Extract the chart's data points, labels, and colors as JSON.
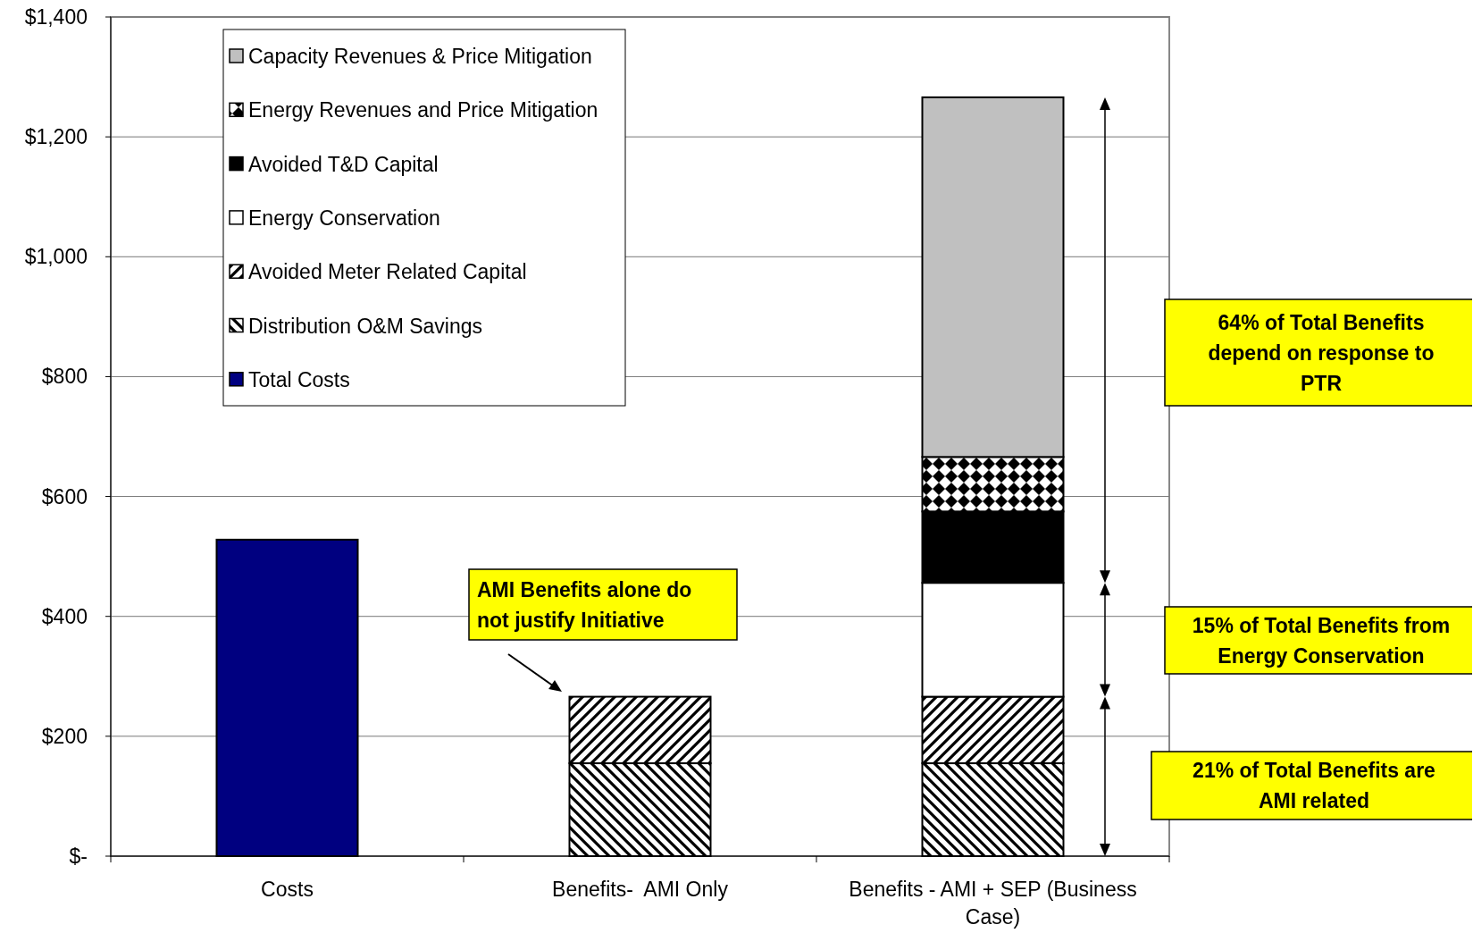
{
  "chart_data": {
    "type": "bar",
    "stacked": true,
    "categories": [
      "Costs",
      "Benefits-  AMI Only",
      "Benefits - AMI + SEP (Business Case)"
    ],
    "series": [
      {
        "name": "Distribution O&M Savings",
        "color": "#000000",
        "values": [
          null,
          155,
          155
        ]
      },
      {
        "name": "Avoided Meter Related Capital",
        "color": "#000000",
        "values": [
          null,
          111,
          111
        ]
      },
      {
        "name": "Energy Conservation",
        "color": "#ffffff",
        "values": [
          null,
          null,
          190
        ]
      },
      {
        "name": "Avoided T&D Capital",
        "color": "#000000",
        "values": [
          null,
          null,
          119
        ]
      },
      {
        "name": "Energy Revenues and Price Mitigation",
        "color": "#000000",
        "values": [
          null,
          null,
          91
        ]
      },
      {
        "name": "Capacity Revenues & Price Mitigation",
        "color": "#c0c0c0",
        "values": [
          null,
          null,
          600
        ]
      },
      {
        "name": "Total Costs",
        "color": "#000080",
        "values": [
          528,
          null,
          null
        ]
      }
    ],
    "ylim": [
      0,
      1400
    ],
    "yticks": [
      {
        "value": 0,
        "label": "$-"
      },
      {
        "value": 200,
        "label": "$200"
      },
      {
        "value": 400,
        "label": "$400"
      },
      {
        "value": 600,
        "label": "$600"
      },
      {
        "value": 800,
        "label": "$800"
      },
      {
        "value": 1000,
        "label": "$1,000"
      },
      {
        "value": 1200,
        "label": "$1,200"
      },
      {
        "value": 1400,
        "label": "$1,400"
      }
    ],
    "grid": "y",
    "legend": "top left",
    "annotations": [
      "64% of Total Benefits depend on response to PTR",
      "15% of Total Benefits from Energy Conservation",
      "21% of Total Benefits are AMI related",
      "AMI Benefits alone do not justify Initiative"
    ]
  }
}
